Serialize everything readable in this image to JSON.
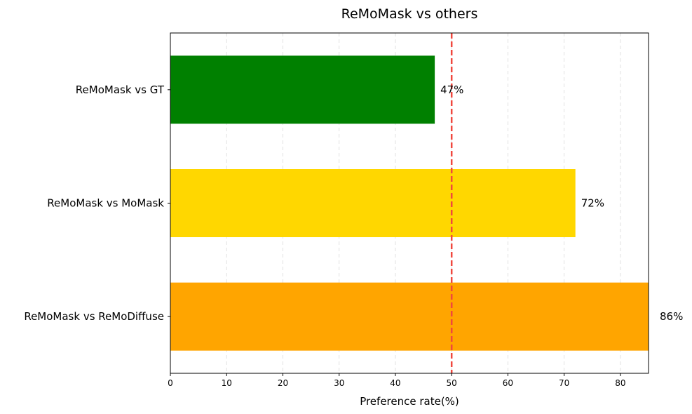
{
  "chart_data": {
    "type": "bar",
    "orientation": "horizontal",
    "title": "ReMoMask vs others",
    "xlabel": "Preference rate(%)",
    "ylabel": "",
    "categories": [
      "ReMoMask vs GT",
      "ReMoMask vs MoMask",
      "ReMoMask vs ReMoDiffuse"
    ],
    "values": [
      47,
      72,
      86
    ],
    "value_labels": [
      "47%",
      "72%",
      "86%"
    ],
    "colors": [
      "#008000",
      "#FFD700",
      "#FFA500"
    ],
    "xlim": [
      0,
      85
    ],
    "xticks": [
      0,
      10,
      20,
      30,
      40,
      50,
      60,
      70,
      80
    ],
    "grid": "x-dashed",
    "reference_line": {
      "x": 50,
      "color": "#F0473E",
      "style": "dashed"
    },
    "legend": "none"
  }
}
